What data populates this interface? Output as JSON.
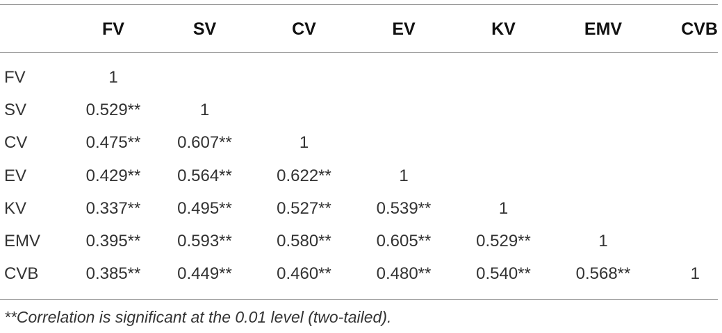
{
  "chart_data": {
    "type": "table",
    "columns": [
      "",
      "FV",
      "SV",
      "CV",
      "EV",
      "KV",
      "EMV",
      "CVB"
    ],
    "rows": [
      {
        "label": "FV",
        "cells": [
          "1",
          "",
          "",
          "",
          "",
          "",
          ""
        ]
      },
      {
        "label": "SV",
        "cells": [
          "0.529**",
          "1",
          "",
          "",
          "",
          "",
          ""
        ]
      },
      {
        "label": "CV",
        "cells": [
          "0.475**",
          "0.607**",
          "1",
          "",
          "",
          "",
          ""
        ]
      },
      {
        "label": "EV",
        "cells": [
          "0.429**",
          "0.564**",
          "0.622**",
          "1",
          "",
          "",
          ""
        ]
      },
      {
        "label": "KV",
        "cells": [
          "0.337**",
          "0.495**",
          "0.527**",
          "0.539**",
          "1",
          "",
          ""
        ]
      },
      {
        "label": "EMV",
        "cells": [
          "0.395**",
          "0.593**",
          "0.580**",
          "0.605**",
          "0.529**",
          "1",
          ""
        ]
      },
      {
        "label": "CVB",
        "cells": [
          "0.385**",
          "0.449**",
          "0.460**",
          "0.480**",
          "0.540**",
          "0.568**",
          "1"
        ]
      }
    ],
    "footnote": "**Correlation is significant at the 0.01 level (two-tailed)."
  }
}
